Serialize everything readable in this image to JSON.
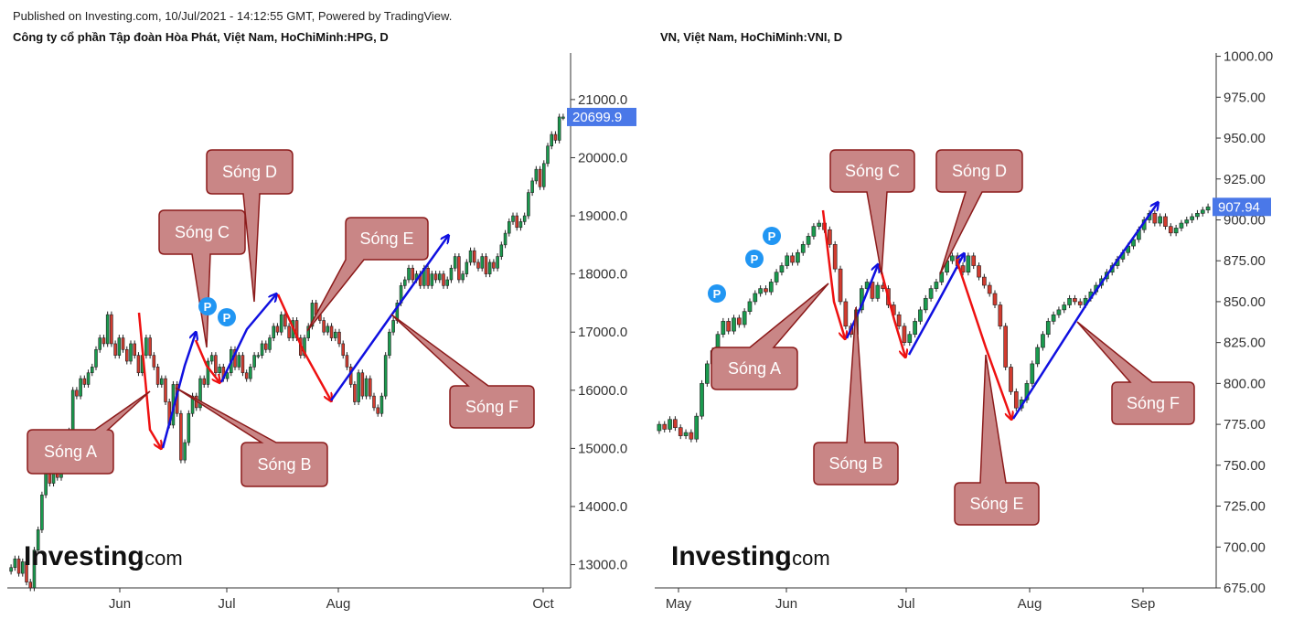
{
  "header": {
    "published": "Published on Investing.com, 10/Jul/2021 - 14:12:55 GMT, Powered by TradingView."
  },
  "colors": {
    "up": "#1a9a4e",
    "down": "#d13b2f",
    "wave_up": "#1010e0",
    "wave_down": "#ee1111",
    "callout_fill": "#c98686",
    "callout_stroke": "#8b1a1a",
    "price_tag": "#4a78e8",
    "pivot": "#2196f3"
  },
  "logo": {
    "brand": "Investing",
    "suffix": ".com"
  },
  "chart_data": [
    {
      "type": "candlestick",
      "title": "Công ty cổ phần Tập đoàn Hòa Phát, Việt Nam, HoChiMinh:HPG, D",
      "ylim": [
        12600,
        21800
      ],
      "y_ticks": [
        13000,
        14000,
        15000,
        16000,
        17000,
        18000,
        19000,
        20000,
        21000
      ],
      "y_tick_labels": [
        "13000.0",
        "14000.0",
        "15000.0",
        "16000.0",
        "17000.0",
        "18000.0",
        "19000.0",
        "20000.0",
        "21000.0"
      ],
      "x_tick_labels": [
        "Jun",
        "Jul",
        "Aug",
        "Oct"
      ],
      "last_price": 20699.9,
      "last_price_label": "20699.9",
      "series": [
        12950,
        13100,
        12850,
        13050,
        12700,
        12600,
        13250,
        13600,
        14200,
        14600,
        14400,
        14700,
        14500,
        14650,
        14800,
        15300,
        16000,
        15900,
        16200,
        16100,
        16300,
        16400,
        16700,
        16900,
        16800,
        17300,
        16800,
        16600,
        16900,
        16700,
        16500,
        16800,
        16600,
        16300,
        16600,
        16900,
        16600,
        16400,
        16100,
        16200,
        15800,
        15400,
        16100,
        15600,
        14800,
        15100,
        15600,
        15900,
        15700,
        16200,
        16100,
        16500,
        16600,
        16300,
        16400,
        16200,
        16300,
        16700,
        16400,
        16600,
        16300,
        16200,
        16400,
        16600,
        16600,
        16800,
        16700,
        16900,
        17100,
        17000,
        17300,
        17100,
        16900,
        17200,
        16900,
        16600,
        16900,
        17100,
        17500,
        17300,
        17200,
        17000,
        17100,
        16900,
        17000,
        16800,
        16600,
        16400,
        16100,
        15800,
        16300,
        15900,
        16200,
        15900,
        15700,
        15600,
        15900,
        16600,
        17000,
        17200,
        17500,
        17800,
        17900,
        18100,
        17900,
        18000,
        17800,
        18100,
        17800,
        18000,
        17900,
        18000,
        17800,
        17900,
        18100,
        18300,
        17900,
        18000,
        18200,
        18400,
        18200,
        18100,
        18300,
        18000,
        18200,
        18100,
        18300,
        18500,
        18700,
        18900,
        19000,
        18800,
        18900,
        19000,
        19400,
        19600,
        19800,
        19500,
        19900,
        20200,
        20400,
        20300,
        20700,
        20700
      ],
      "annotations": [
        "Sóng A",
        "Sóng B",
        "Sóng C",
        "Sóng D",
        "Sóng E",
        "Sóng F"
      ],
      "pivots": [
        "P",
        "P"
      ]
    },
    {
      "type": "candlestick",
      "title": "VN, Việt Nam, HoChiMinh:VNI, D",
      "ylim": [
        675,
        1002
      ],
      "y_ticks": [
        675,
        700,
        725,
        750,
        775,
        800,
        825,
        850,
        875,
        900,
        925,
        950,
        975,
        1000
      ],
      "y_tick_labels": [
        "675.00",
        "700.00",
        "725.00",
        "750.00",
        "775.00",
        "800.00",
        "825.00",
        "850.00",
        "875.00",
        "900.00",
        "925.00",
        "950.00",
        "975.00",
        "1000.00"
      ],
      "x_tick_labels": [
        "May",
        "Jun",
        "Jul",
        "Aug",
        "Sep"
      ],
      "last_price": 907.94,
      "last_price_label": "907.94",
      "series": [
        775,
        772,
        778,
        773,
        768,
        770,
        766,
        780,
        800,
        812,
        820,
        830,
        838,
        832,
        840,
        836,
        844,
        850,
        855,
        858,
        856,
        862,
        868,
        872,
        878,
        874,
        880,
        885,
        890,
        896,
        898,
        894,
        885,
        870,
        850,
        835,
        830,
        845,
        858,
        862,
        852,
        860,
        858,
        848,
        842,
        835,
        825,
        830,
        838,
        845,
        852,
        858,
        862,
        868,
        875,
        878,
        872,
        868,
        878,
        872,
        865,
        860,
        855,
        848,
        835,
        810,
        795,
        785,
        790,
        800,
        812,
        822,
        830,
        838,
        842,
        845,
        848,
        852,
        850,
        848,
        852,
        856,
        860,
        864,
        868,
        872,
        876,
        880,
        884,
        888,
        894,
        900,
        904,
        898,
        902,
        896,
        892,
        895,
        898,
        900,
        902,
        904,
        906,
        908
      ],
      "annotations": [
        "Sóng A",
        "Sóng B",
        "Sóng C",
        "Sóng D",
        "Sóng E",
        "Sóng F"
      ],
      "pivots": [
        "P",
        "P",
        "P"
      ]
    }
  ]
}
